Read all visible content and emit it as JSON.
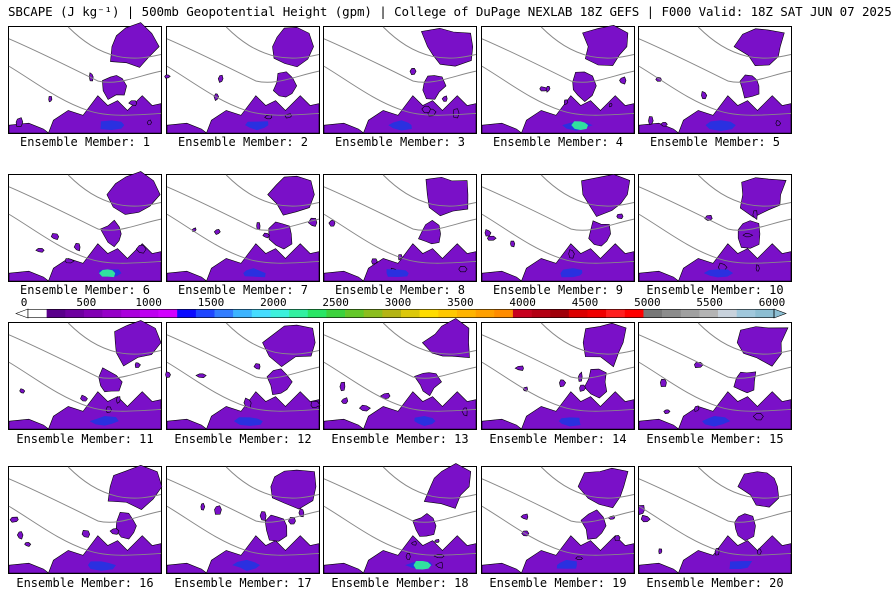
{
  "title": "SBCAPE (J kg⁻¹) | 500mb Geopotential Height (gpm) | College of DuPage NEXLAB 18Z GEFS | F000 Valid: 18Z SAT JUN 07 2025",
  "members": [
    {
      "label": "Ensemble Member: 1"
    },
    {
      "label": "Ensemble Member: 2"
    },
    {
      "label": "Ensemble Member: 3"
    },
    {
      "label": "Ensemble Member: 4"
    },
    {
      "label": "Ensemble Member: 5"
    },
    {
      "label": "Ensemble Member: 6"
    },
    {
      "label": "Ensemble Member: 7"
    },
    {
      "label": "Ensemble Member: 8"
    },
    {
      "label": "Ensemble Member: 9"
    },
    {
      "label": "Ensemble Member: 10"
    },
    {
      "label": "Ensemble Member: 11"
    },
    {
      "label": "Ensemble Member: 12"
    },
    {
      "label": "Ensemble Member: 13"
    },
    {
      "label": "Ensemble Member: 14"
    },
    {
      "label": "Ensemble Member: 15"
    },
    {
      "label": "Ensemble Member: 16"
    },
    {
      "label": "Ensemble Member: 17"
    },
    {
      "label": "Ensemble Member: 18"
    },
    {
      "label": "Ensemble Member: 19"
    },
    {
      "label": "Ensemble Member: 20"
    }
  ],
  "colorbar": {
    "ticks": [
      "0",
      "500",
      "1000",
      "1500",
      "2000",
      "2500",
      "3000",
      "3500",
      "4000",
      "4500",
      "5000",
      "5500",
      "6000"
    ],
    "colors": [
      "#ffffff",
      "#5a008c",
      "#6e00a0",
      "#8200b4",
      "#9600c8",
      "#aa00dc",
      "#be00f0",
      "#d200ff",
      "#0a0aff",
      "#1e46ff",
      "#327dff",
      "#3cb4ff",
      "#46dcff",
      "#3cf0dc",
      "#32f0a0",
      "#28e664",
      "#3cd23c",
      "#64c828",
      "#8cbe1e",
      "#b4b414",
      "#dcc80a",
      "#ffdc00",
      "#ffc800",
      "#ffb400",
      "#ffa000",
      "#ff8c00",
      "#c8001e",
      "#b40014",
      "#a0000a",
      "#dc0000",
      "#f00000",
      "#ff1e1e",
      "#ff0000",
      "#787878",
      "#8c8c8c",
      "#a0a0a0",
      "#b4b4b4",
      "#c8d2dc",
      "#a0c8dc",
      "#8cbed2"
    ]
  },
  "colors": {
    "low_cape": "#7a10c8",
    "moderate_cape": "#2a30e0",
    "high_cape": "#30e0a0",
    "height_contour": "#888888"
  }
}
